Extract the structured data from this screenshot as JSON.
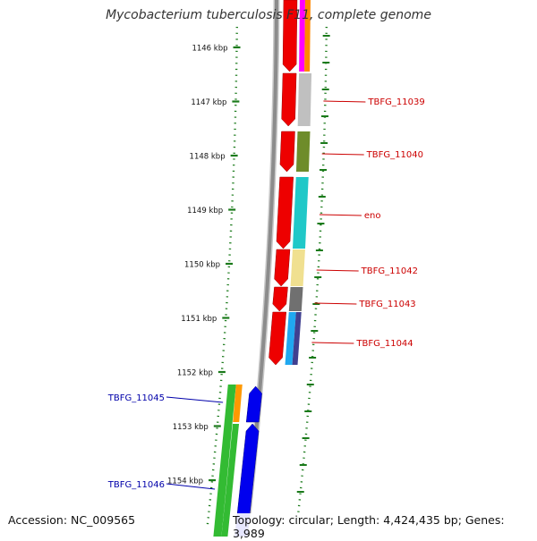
{
  "title": "Mycobacterium tuberculosis F11, complete genome",
  "footer": {
    "accession": "Accession: NC_009565",
    "topology": "Topology: circular; Length: 4,424,435 bp; Genes: 3,989"
  },
  "ruler": {
    "unit_suffix": " kbp",
    "labels": [
      "1146",
      "1147",
      "1148",
      "1149",
      "1150",
      "1151",
      "1152",
      "1153",
      "1154"
    ]
  },
  "genes_right": [
    "TBFG_11039",
    "TBFG_11040",
    "eno",
    "TBFG_11042",
    "TBFG_11043",
    "TBFG_11044"
  ],
  "genes_left": [
    "TBFG_11045",
    "TBFG_11046"
  ],
  "colors": {
    "backbone": "#8c8c8c",
    "forward_cds": "#ee0000",
    "reverse_cds": "#0000ee",
    "tick": "#1a7a1a",
    "label_right": "#cc0000",
    "label_left": "#0000aa",
    "gene_TBFG_11039": "#c0c0c0",
    "gene_TBFG_11040": "#6e8c2a",
    "gene_eno": "#20c8c8",
    "gene_TBFG_11042": "#f0e090",
    "gene_TBFG_11043": "#707070",
    "gene_TBFG_11044_a": "#20a8f0",
    "gene_TBFG_11044_b": "#404090",
    "gene_TBFG_11045": "#33bb33",
    "gene_TBFG_11045_b": "#ff9900",
    "gene_top_a": "#ff00ff",
    "gene_top_b": "#ff8800"
  }
}
